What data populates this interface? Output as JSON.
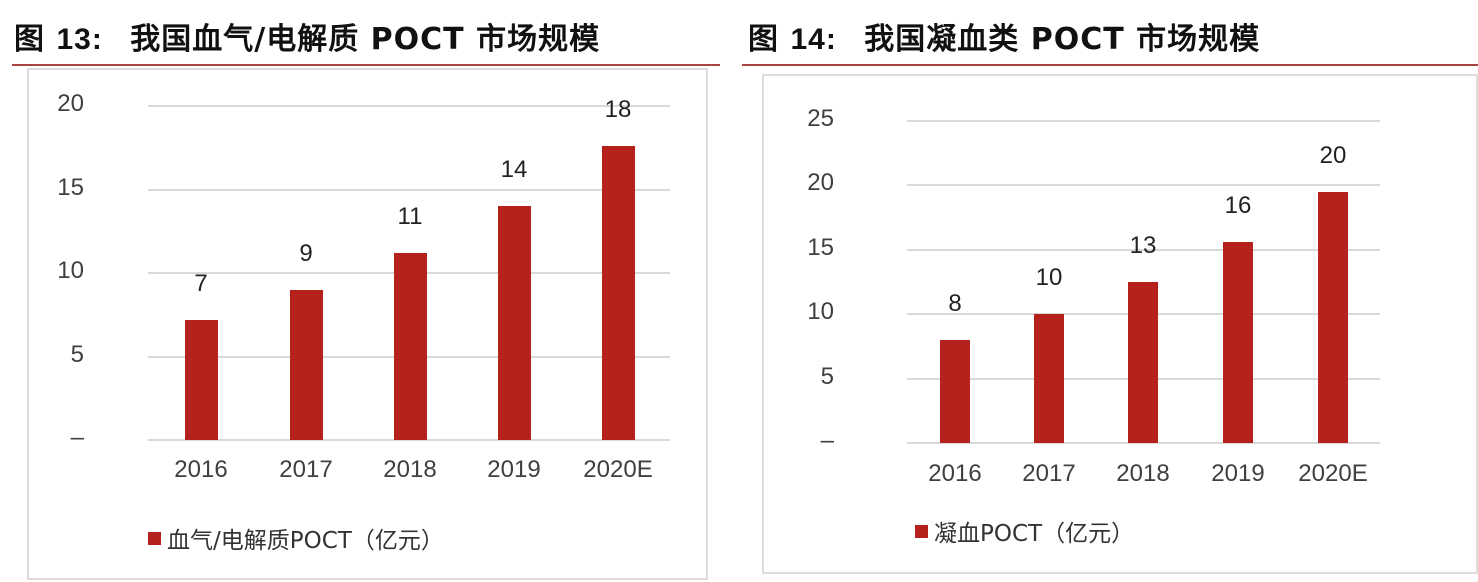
{
  "figures": [
    {
      "title_prefix": "图",
      "title_num": "13:",
      "title_text": "我国血气/电解质 POCT 市场规模"
    },
    {
      "title_prefix": "图",
      "title_num": "14:",
      "title_text": "我国凝血类 POCT 市场规模"
    }
  ],
  "colors": {
    "bar": "#b5221e",
    "rule": "#a94442",
    "grid": "#d9d9d9"
  },
  "chart_data": [
    {
      "type": "bar",
      "title": "图 13: 我国血气/电解质 POCT 市场规模",
      "categories": [
        "2016",
        "2017",
        "2018",
        "2019",
        "2020E"
      ],
      "series": [
        {
          "name": "血气/电解质POCT（亿元）",
          "values": [
            7.2,
            9.0,
            11.2,
            14.0,
            17.6
          ]
        }
      ],
      "data_labels": [
        "7",
        "9",
        "11",
        "14",
        "18"
      ],
      "yticks": [
        "–",
        "5",
        "10",
        "15",
        "20"
      ],
      "ylim": [
        0,
        20
      ],
      "grid": true,
      "legend_position": "bottom",
      "xlabel": "",
      "ylabel": ""
    },
    {
      "type": "bar",
      "title": "图 14: 我国凝血类 POCT 市场规模",
      "categories": [
        "2016",
        "2017",
        "2018",
        "2019",
        "2020E"
      ],
      "series": [
        {
          "name": "凝血POCT（亿元）",
          "values": [
            8.0,
            10.0,
            12.5,
            15.6,
            19.5
          ]
        }
      ],
      "data_labels": [
        "8",
        "10",
        "13",
        "16",
        "20"
      ],
      "yticks": [
        "–",
        "5",
        "10",
        "15",
        "20",
        "25"
      ],
      "ylim": [
        0,
        25
      ],
      "grid": true,
      "legend_position": "bottom",
      "xlabel": "",
      "ylabel": ""
    }
  ]
}
